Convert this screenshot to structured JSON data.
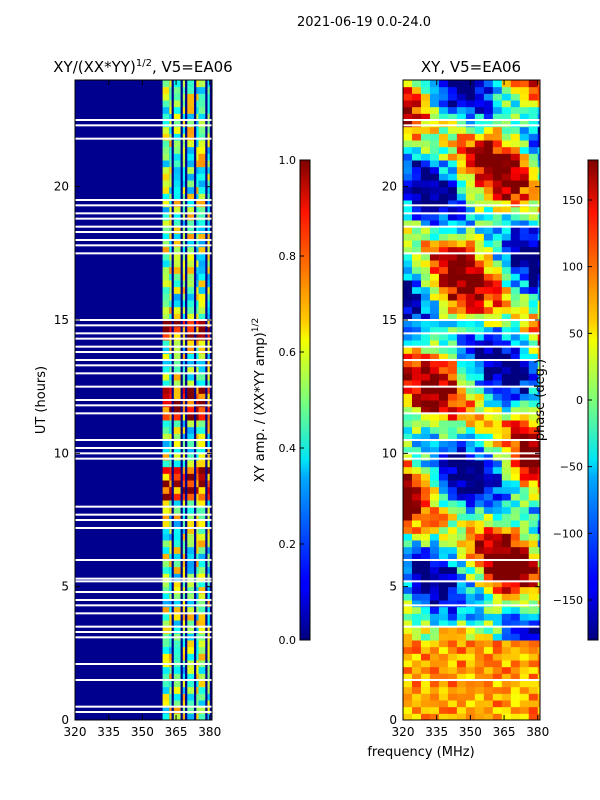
{
  "suptitle": "2021-06-19 0.0-24.0",
  "left_panel": {
    "title": "XY/(XX*YY)^1/2, V5=EA06",
    "title_main": "XY/(XX*YY)",
    "title_sup": "1/2",
    "title_tail": ", V5=EA06"
  },
  "right_panel": {
    "title": "XY, V5=EA06"
  },
  "shared_axes": {
    "ylabel": "UT (hours)",
    "xlabel": "frequency (MHz)"
  },
  "colorbar_left": {
    "label": "XY amp. / (XX*YY amp)^1/2",
    "label_main": "XY amp. / (XX*YY amp)",
    "label_sup": "1/2"
  },
  "colorbar_right": {
    "label": "phase (deg.)"
  },
  "chart_data": [
    {
      "type": "heatmap",
      "title": "XY/(XX*YY)^1/2, V5=EA06",
      "xlabel": "",
      "ylabel": "UT (hours)",
      "xlim": [
        320,
        381
      ],
      "ylim": [
        0,
        24
      ],
      "x_ticks": [
        320,
        335,
        350,
        365,
        380
      ],
      "y_ticks": [
        0,
        5,
        10,
        15,
        20
      ],
      "colorbar": {
        "label": "XY amp. / (XX*YY amp)^1/2",
        "range": [
          0.0,
          1.0
        ],
        "ticks": [
          "0.0",
          "0.2",
          "0.4",
          "0.6",
          "0.8",
          "1.0"
        ],
        "colormap": "jet"
      },
      "active_freq_bands_mhz": [
        [
          359,
          362
        ],
        [
          362,
          363
        ],
        [
          364,
          367
        ],
        [
          368,
          369
        ],
        [
          370,
          373
        ],
        [
          374,
          375
        ],
        [
          375,
          378
        ],
        [
          379,
          380
        ]
      ],
      "flagged_ut_hours": [
        0.3,
        0.5,
        1.5,
        2.1,
        3.1,
        3.3,
        3.5,
        4.0,
        4.3,
        4.5,
        4.8,
        5.2,
        5.3,
        6.0,
        7.2,
        7.5,
        7.7,
        8.0,
        9.8,
        10.0,
        10.2,
        10.5,
        11.5,
        11.8,
        12.0,
        12.5,
        13.0,
        13.3,
        13.5,
        13.8,
        14.0,
        14.3,
        14.5,
        14.8,
        15.0,
        17.5,
        17.8,
        18.0,
        18.3,
        18.5,
        18.8,
        19.0,
        19.3,
        19.5,
        21.8,
        22.3,
        22.5
      ]
    },
    {
      "type": "heatmap",
      "title": "XY, V5=EA06",
      "xlabel": "frequency (MHz)",
      "ylabel": "",
      "xlim": [
        320,
        381
      ],
      "ylim": [
        0,
        24
      ],
      "x_ticks": [
        320,
        335,
        350,
        365,
        380
      ],
      "y_ticks": [
        0,
        5,
        10,
        15,
        20
      ],
      "colorbar": {
        "label": "phase (deg.)",
        "range": [
          -180,
          180
        ],
        "ticks": [
          "150",
          "100",
          "50",
          "0",
          "−50",
          "−100",
          "−150"
        ],
        "colormap": "jet"
      },
      "flagged_ut_hours": [
        1.5,
        3.5,
        4.3,
        5.2,
        6.0,
        9.8,
        10.0,
        10.5,
        11.5,
        12.5,
        13.5,
        14.0,
        14.5,
        15.0,
        17.5,
        18.5,
        19.0,
        19.3,
        22.3,
        22.5
      ]
    }
  ]
}
